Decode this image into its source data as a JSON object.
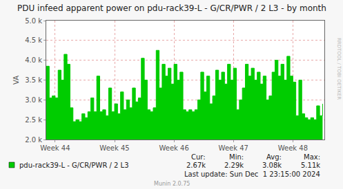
{
  "chart_data": {
    "type": "area",
    "title": "PDU infeed apparent power on pdu-rack39-L - G/CR/PWR / 2 L3 - by month",
    "y_label": "VA",
    "x": [
      43.85,
      43.9,
      43.95,
      44.0,
      44.05,
      44.1,
      44.15,
      44.2,
      44.25,
      44.3,
      44.35,
      44.4,
      44.45,
      44.5,
      44.55,
      44.6,
      44.65,
      44.7,
      44.75,
      44.8,
      44.85,
      44.9,
      44.95,
      45.0,
      45.05,
      45.1,
      45.15,
      45.2,
      45.25,
      45.3,
      45.35,
      45.4,
      45.45,
      45.5,
      45.55,
      45.6,
      45.65,
      45.7,
      45.75,
      45.8,
      45.85,
      45.9,
      45.95,
      46.0,
      46.05,
      46.1,
      46.15,
      46.2,
      46.25,
      46.3,
      46.35,
      46.4,
      46.45,
      46.5,
      46.55,
      46.6,
      46.65,
      46.7,
      46.75,
      46.8,
      46.85,
      46.9,
      46.95,
      47.0,
      47.05,
      47.1,
      47.15,
      47.2,
      47.25,
      47.3,
      47.35,
      47.4,
      47.45,
      47.5,
      47.55,
      47.6,
      47.65,
      47.7,
      47.75,
      47.8,
      47.85,
      47.9,
      47.95,
      48.0,
      48.05,
      48.1,
      48.15,
      48.2,
      48.25,
      48.3,
      48.35,
      48.4,
      48.45,
      48.5
    ],
    "series": [
      {
        "name": "pdu-rack39-L - G/CR/PWR / 2 L3",
        "color": "#00cc00",
        "values": [
          3850,
          3050,
          3100,
          3050,
          3750,
          3500,
          4150,
          3900,
          2800,
          2450,
          2500,
          2450,
          2650,
          2550,
          2700,
          3050,
          2700,
          3600,
          2700,
          2750,
          2600,
          3300,
          2700,
          2900,
          2650,
          3200,
          2750,
          3000,
          2800,
          3300,
          2950,
          3050,
          4050,
          3500,
          2750,
          2700,
          2800,
          4250,
          3300,
          3900,
          3600,
          3800,
          3400,
          3900,
          3500,
          3700,
          2750,
          2700,
          2750,
          2700,
          2750,
          3000,
          3700,
          3200,
          3600,
          2900,
          3100,
          3750,
          3500,
          3700,
          3400,
          3900,
          3500,
          3800,
          2750,
          3000,
          3300,
          3900,
          3600,
          3800,
          3500,
          3700,
          3400,
          3600,
          3000,
          3100,
          3700,
          4000,
          3600,
          3900,
          3500,
          4100,
          3600,
          3450,
          2600,
          3500,
          2650,
          2550,
          2500,
          2550,
          2500,
          2850,
          2600,
          2900
        ]
      }
    ],
    "xlim": [
      43.85,
      48.53
    ],
    "xticks": [
      {
        "value": 44,
        "label": "Week 44"
      },
      {
        "value": 45,
        "label": "Week 45"
      },
      {
        "value": 46,
        "label": "Week 46"
      },
      {
        "value": 47,
        "label": "Week 47"
      },
      {
        "value": 48,
        "label": "Week 48"
      }
    ],
    "ylim": [
      2000,
      5000
    ],
    "yticks": [
      {
        "value": 2000,
        "label": "2.0 k"
      },
      {
        "value": 2500,
        "label": "2.5 k"
      },
      {
        "value": 3000,
        "label": "3.0 k"
      },
      {
        "value": 3500,
        "label": "3.5 k"
      },
      {
        "value": 4000,
        "label": "4.0 k"
      },
      {
        "value": 4500,
        "label": "4.5 k"
      },
      {
        "value": 5000,
        "label": "5.0 k"
      }
    ],
    "grid": true,
    "stats": [
      {
        "label": "Cur:",
        "text": "2.67k"
      },
      {
        "label": "Min:",
        "text": "2.29k"
      },
      {
        "label": "Avg:",
        "text": "3.08k"
      },
      {
        "label": "Max:",
        "text": "5.11k"
      }
    ],
    "last_update": "Last update: Sun Dec  1 23:15:00 2024",
    "footer": "Munin 2.0.75",
    "side_text": "RRDTOOL / TOBI OETIKER"
  }
}
